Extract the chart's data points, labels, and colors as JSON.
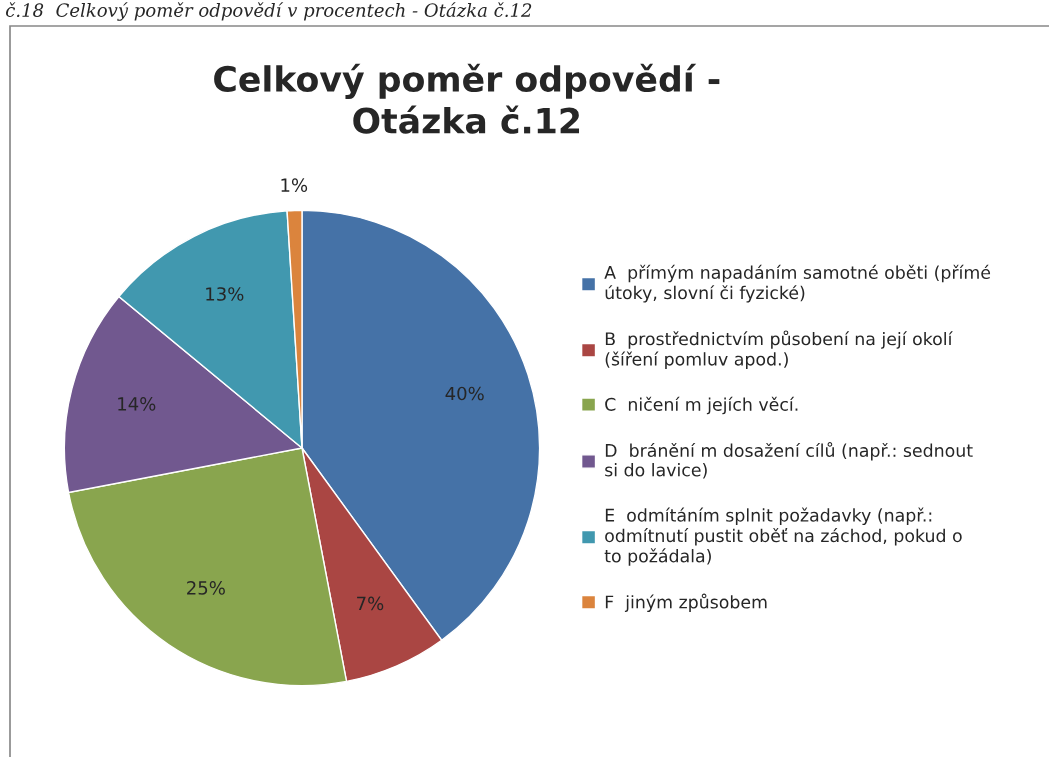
{
  "chart_data": {
    "type": "pie",
    "title": "Celkový poměr odpovědí -\nOtázka č.12",
    "categories": [
      "A  přímým napadáním samotné oběti (přímé útoky, slovní či fyzické)",
      "B  prostřednictvím působení na její okolí (šíření pomluv apod.)",
      "C  ničení m jejích věcí.",
      "D  bránění m dosažení cílů (např.: sednout si do lavice)",
      "E  odmítáním splnit požadavky (např.: odmítnutí pustit oběť na záchod, pokud o to požádala)",
      "F  jiným způsobem"
    ],
    "values": [
      40,
      7,
      25,
      14,
      13,
      1
    ],
    "colors": [
      "#4572a7",
      "#aa4643",
      "#89a54e",
      "#71588f",
      "#4198af",
      "#db843d"
    ],
    "value_labels": [
      "40%",
      "7%",
      "25%",
      "14%",
      "13%",
      "1%"
    ],
    "annotations": [
      "č.18  Celkový poměr odpovědí v procentech - Otázka č.12"
    ],
    "legend": "right"
  }
}
